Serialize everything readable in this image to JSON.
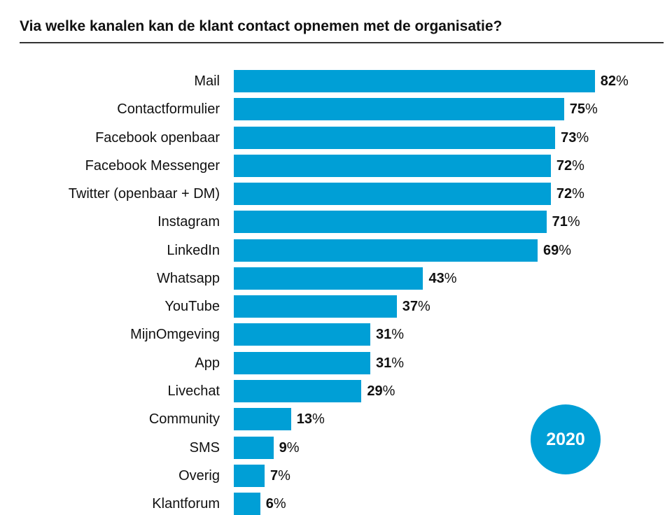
{
  "chart_data": {
    "type": "bar",
    "orientation": "horizontal",
    "title": "Via welke kanalen kan de klant contact opnemen met de organisatie?",
    "categories": [
      "Mail",
      "Contactformulier",
      "Facebook openbaar",
      "Facebook Messenger",
      "Twitter (openbaar + DM)",
      "Instagram",
      "LinkedIn",
      "Whatsapp",
      "YouTube",
      "MijnOmgeving",
      "App",
      "Livechat",
      "Community",
      "SMS",
      "Overig",
      "Klantforum"
    ],
    "values": [
      82,
      75,
      73,
      72,
      72,
      71,
      69,
      43,
      37,
      31,
      31,
      29,
      13,
      9,
      7,
      6
    ],
    "unit": "%",
    "badge": "2020",
    "bar_color": "#009fd6",
    "grid": false
  }
}
